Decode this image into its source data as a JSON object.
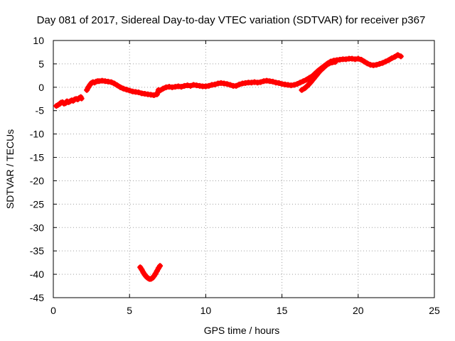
{
  "chart_data": {
    "type": "scatter",
    "title": "Day 081 of 2017, Sidereal Day-to-day VTEC variation (SDTVAR) for receiver p367",
    "xlabel": "GPS time / hours",
    "ylabel": "SDTVAR / TECUs",
    "xlim": [
      0,
      25
    ],
    "ylim": [
      -45,
      10
    ],
    "xticks": [
      0,
      5,
      10,
      15,
      20,
      25
    ],
    "yticks": [
      -45,
      -40,
      -35,
      -30,
      -25,
      -20,
      -15,
      -10,
      -5,
      0,
      5,
      10
    ],
    "grid": true,
    "series_color": "#ff0000",
    "grid_color": "#a0a0a0",
    "series": [
      {
        "name": "main",
        "points": [
          [
            0.2,
            -4.0
          ],
          [
            0.3,
            -3.8
          ],
          [
            0.4,
            -3.6
          ],
          [
            0.5,
            -3.3
          ],
          [
            0.6,
            -3.2
          ],
          [
            0.7,
            -3.5
          ],
          [
            0.8,
            -3.4
          ],
          [
            0.9,
            -3.0
          ],
          [
            1.0,
            -3.2
          ],
          [
            1.1,
            -3.0
          ],
          [
            1.2,
            -2.8
          ],
          [
            1.3,
            -2.9
          ],
          [
            1.4,
            -2.6
          ],
          [
            1.5,
            -2.5
          ],
          [
            1.6,
            -2.6
          ],
          [
            1.7,
            -2.3
          ],
          [
            1.8,
            -2.1
          ],
          [
            1.85,
            -2.4
          ],
          [
            2.2,
            -0.6
          ],
          [
            2.3,
            0.0
          ],
          [
            2.4,
            0.5
          ],
          [
            2.5,
            0.9
          ],
          [
            2.6,
            1.1
          ],
          [
            2.7,
            1.0
          ],
          [
            2.8,
            1.2
          ],
          [
            2.9,
            1.3
          ],
          [
            3.0,
            1.3
          ],
          [
            3.2,
            1.4
          ],
          [
            3.4,
            1.3
          ],
          [
            3.6,
            1.2
          ],
          [
            3.8,
            1.1
          ],
          [
            4.0,
            0.8
          ],
          [
            4.2,
            0.4
          ],
          [
            4.4,
            0.0
          ],
          [
            4.6,
            -0.3
          ],
          [
            4.8,
            -0.5
          ],
          [
            5.0,
            -0.7
          ],
          [
            5.2,
            -0.9
          ],
          [
            5.4,
            -1.0
          ],
          [
            5.6,
            -1.1
          ],
          [
            5.8,
            -1.3
          ],
          [
            6.0,
            -1.4
          ],
          [
            6.2,
            -1.5
          ],
          [
            6.4,
            -1.6
          ],
          [
            6.6,
            -1.7
          ],
          [
            6.8,
            -1.5
          ],
          [
            6.9,
            -0.6
          ],
          [
            7.0,
            -0.7
          ],
          [
            7.2,
            -0.3
          ],
          [
            7.4,
            0.0
          ],
          [
            7.6,
            0.1
          ],
          [
            7.8,
            0.0
          ],
          [
            8.0,
            0.1
          ],
          [
            8.2,
            0.2
          ],
          [
            8.4,
            0.1
          ],
          [
            8.6,
            0.3
          ],
          [
            8.8,
            0.4
          ],
          [
            9.0,
            0.3
          ],
          [
            9.2,
            0.5
          ],
          [
            9.4,
            0.4
          ],
          [
            9.6,
            0.3
          ],
          [
            9.8,
            0.2
          ],
          [
            10.0,
            0.2
          ],
          [
            10.2,
            0.3
          ],
          [
            10.4,
            0.5
          ],
          [
            10.6,
            0.6
          ],
          [
            10.8,
            0.8
          ],
          [
            11.0,
            0.9
          ],
          [
            11.2,
            0.8
          ],
          [
            11.4,
            0.7
          ],
          [
            11.6,
            0.5
          ],
          [
            11.8,
            0.3
          ],
          [
            12.0,
            0.3
          ],
          [
            12.2,
            0.6
          ],
          [
            12.4,
            0.8
          ],
          [
            12.6,
            0.9
          ],
          [
            12.8,
            1.0
          ],
          [
            13.0,
            1.0
          ],
          [
            13.2,
            1.1
          ],
          [
            13.4,
            1.0
          ],
          [
            13.6,
            1.1
          ],
          [
            13.8,
            1.3
          ],
          [
            14.0,
            1.4
          ],
          [
            14.2,
            1.3
          ],
          [
            14.4,
            1.2
          ],
          [
            14.6,
            1.0
          ],
          [
            14.8,
            0.9
          ],
          [
            15.0,
            0.7
          ],
          [
            15.2,
            0.6
          ],
          [
            15.4,
            0.5
          ],
          [
            15.6,
            0.4
          ],
          [
            15.8,
            0.5
          ],
          [
            16.0,
            0.7
          ],
          [
            16.2,
            1.0
          ],
          [
            16.4,
            1.3
          ],
          [
            16.6,
            1.6
          ],
          [
            16.8,
            2.0
          ],
          [
            17.0,
            2.4
          ],
          [
            17.2,
            3.0
          ],
          [
            17.4,
            3.6
          ],
          [
            17.6,
            4.1
          ],
          [
            17.8,
            4.6
          ],
          [
            18.0,
            5.1
          ],
          [
            18.2,
            5.5
          ],
          [
            18.4,
            5.7
          ],
          [
            18.6,
            5.8
          ],
          [
            18.8,
            5.9
          ],
          [
            19.0,
            6.0
          ],
          [
            19.2,
            6.0
          ],
          [
            19.4,
            6.1
          ],
          [
            19.6,
            6.1
          ],
          [
            19.8,
            6.0
          ],
          [
            20.0,
            6.1
          ],
          [
            20.2,
            5.9
          ],
          [
            20.4,
            5.5
          ],
          [
            20.6,
            5.1
          ],
          [
            20.8,
            4.8
          ],
          [
            21.0,
            4.7
          ],
          [
            21.2,
            4.8
          ],
          [
            21.4,
            5.0
          ],
          [
            21.6,
            5.2
          ],
          [
            21.8,
            5.5
          ],
          [
            22.0,
            5.8
          ],
          [
            22.2,
            6.2
          ],
          [
            22.4,
            6.5
          ],
          [
            22.6,
            6.9
          ],
          [
            22.8,
            6.6
          ]
        ]
      },
      {
        "name": "secondary-branch",
        "points": [
          [
            16.3,
            -0.6
          ],
          [
            16.5,
            -0.2
          ],
          [
            16.7,
            0.4
          ],
          [
            16.9,
            1.1
          ],
          [
            17.1,
            1.9
          ],
          [
            17.3,
            2.7
          ],
          [
            17.5,
            3.5
          ],
          [
            17.7,
            4.1
          ],
          [
            17.9,
            4.7
          ],
          [
            18.1,
            5.1
          ],
          [
            18.3,
            5.3
          ],
          [
            18.5,
            5.4
          ]
        ]
      },
      {
        "name": "outlier-arc",
        "points": [
          [
            5.7,
            -38.5
          ],
          [
            5.8,
            -39.0
          ],
          [
            5.9,
            -39.6
          ],
          [
            6.0,
            -40.1
          ],
          [
            6.1,
            -40.5
          ],
          [
            6.2,
            -40.8
          ],
          [
            6.3,
            -41.0
          ],
          [
            6.4,
            -41.0
          ],
          [
            6.5,
            -40.8
          ],
          [
            6.6,
            -40.4
          ],
          [
            6.7,
            -39.9
          ],
          [
            6.8,
            -39.3
          ],
          [
            6.9,
            -38.7
          ],
          [
            7.0,
            -38.2
          ]
        ]
      }
    ]
  }
}
